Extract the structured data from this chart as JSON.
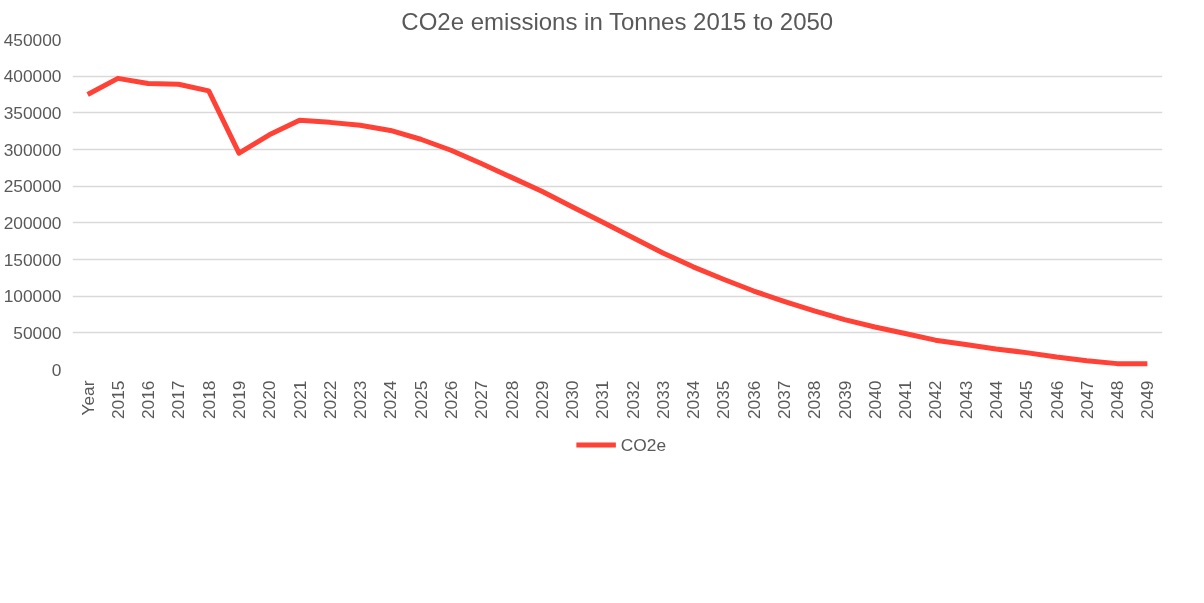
{
  "chart_data": {
    "type": "line",
    "title": "CO2e emissions in Tonnes 2015 to 2050",
    "categories": [
      "Year",
      "2015",
      "2016",
      "2017",
      "2018",
      "2019",
      "2020",
      "2021",
      "2022",
      "2023",
      "2024",
      "2025",
      "2026",
      "2027",
      "2028",
      "2029",
      "2030",
      "2031",
      "2032",
      "2033",
      "2034",
      "2035",
      "2036",
      "2037",
      "2038",
      "2039",
      "2040",
      "2041",
      "2042",
      "2043",
      "2044",
      "2045",
      "2046",
      "2047",
      "2048",
      "2049"
    ],
    "series": [
      {
        "name": "CO2e",
        "color": "#ff4136",
        "values": [
          375000,
          397000,
          390000,
          389000,
          380000,
          295000,
          320000,
          340000,
          337000,
          333000,
          326000,
          314000,
          299000,
          281000,
          262000,
          243000,
          222000,
          201000,
          180000,
          159000,
          140000,
          123000,
          107000,
          93000,
          80000,
          68000,
          58000,
          49000,
          40000,
          34000,
          28000,
          23000,
          17000,
          12000,
          8000,
          8000
        ]
      }
    ],
    "ylim": [
      0,
      450000
    ],
    "yticks": [
      0,
      50000,
      100000,
      150000,
      200000,
      250000,
      300000,
      350000,
      400000,
      450000
    ],
    "grid": "y",
    "legend": "bottom",
    "marker": "none",
    "line_style": "solid"
  }
}
